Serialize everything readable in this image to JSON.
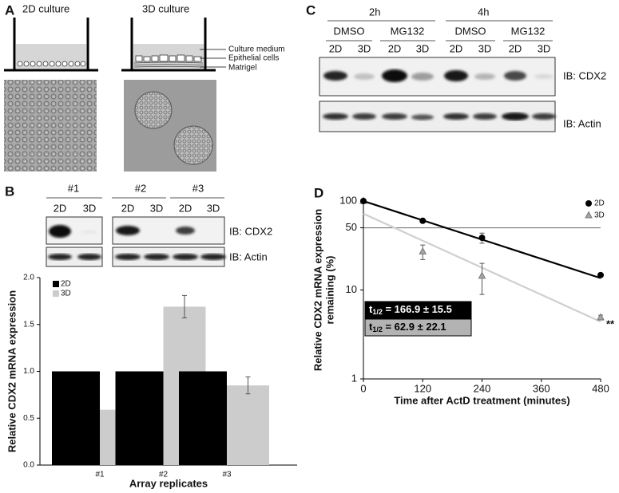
{
  "panel_a": {
    "label": "A",
    "titles": [
      "2D culture",
      "3D culture"
    ],
    "legend": [
      "Culture medium",
      "Epithelial cells",
      "Matrigel"
    ]
  },
  "panel_c": {
    "label": "C",
    "times": [
      "2h",
      "4h"
    ],
    "treatments": [
      "DMSO",
      "MG132",
      "DMSO",
      "MG132"
    ],
    "lanes": [
      "2D",
      "3D",
      "2D",
      "3D",
      "2D",
      "3D",
      "2D",
      "3D"
    ],
    "blots": [
      "IB: CDX2",
      "IB: Actin"
    ]
  },
  "panel_b_blot": {
    "replicates": [
      "#1",
      "#2",
      "#3"
    ],
    "lanes": [
      "2D",
      "3D",
      "2D",
      "3D",
      "2D",
      "3D"
    ],
    "blots": [
      "IB: CDX2",
      "IB: Actin"
    ]
  },
  "chart_data": [
    {
      "type": "bar",
      "panel_label": "B",
      "y_label": "Relative CDX2 mRNA expression",
      "x_label": "Array replicates",
      "categories": [
        "#1",
        "#2",
        "#3"
      ],
      "series": [
        {
          "name": "2D",
          "color": "#000000",
          "values": [
            1,
            1,
            1
          ]
        },
        {
          "name": "3D",
          "color": "#cccccc",
          "values": [
            0.59,
            1.69,
            0.85
          ],
          "errors": [
            0.04,
            0.12,
            0.09
          ]
        }
      ],
      "ylim": [
        0,
        2
      ],
      "yticks": [
        {
          "value": 0,
          "label": "0.0"
        },
        {
          "value": 0.5,
          "label": "0.5"
        },
        {
          "value": 1,
          "label": "1.0"
        },
        {
          "value": 1.5,
          "label": "1.5"
        },
        {
          "value": 2,
          "label": "2.0"
        }
      ],
      "legend": "upper left"
    },
    {
      "type": "line",
      "panel_label": "D",
      "y_label": [
        "Relative CDX2 mRNA expression",
        "remaining (%)"
      ],
      "x_label": "Time after ActD treatment (minutes)",
      "x": [
        0,
        120,
        240,
        480
      ],
      "series": [
        {
          "name": "2D",
          "color": "#000000",
          "fit_color": "#000000",
          "marker": "circle",
          "values": [
            100,
            60,
            38.6,
            14.7
          ],
          "errors": [
            null,
            2,
            5,
            0.5
          ],
          "fit": [
            100,
            13.6
          ],
          "half_life": {
            "prefix": "t",
            "sub": "1/2",
            "text": " = 166.9 ± 15.5"
          }
        },
        {
          "name": "3D",
          "color": "#a6a6a6",
          "fit_color": "#cfcfcf",
          "marker": "triangle",
          "values": [
            100,
            27,
            14.4,
            4.9
          ],
          "errors": [
            null,
            5,
            5.5,
            0.3
          ],
          "fit": [
            72,
            4.4
          ],
          "half_life": {
            "prefix": "t",
            "sub": "1/2",
            "text": " = 62.9 ± 22.1"
          }
        }
      ],
      "xlim": [
        0,
        480
      ],
      "xticks": [
        0,
        120,
        240,
        360,
        480
      ],
      "ylim": [
        1,
        100
      ],
      "yticks": [
        1,
        10,
        50,
        100
      ],
      "log_y": true,
      "reference_line": 50,
      "annotation": "**",
      "legend": "upper right"
    }
  ]
}
